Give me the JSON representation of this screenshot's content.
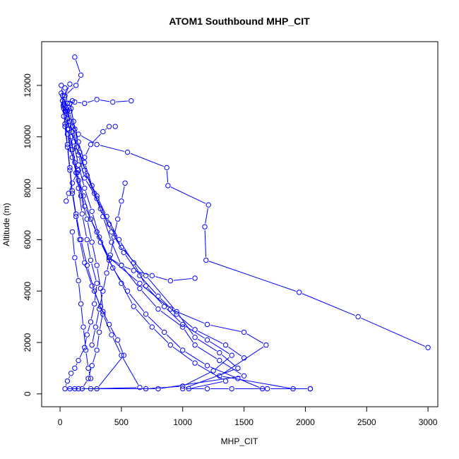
{
  "chart_data": {
    "type": "line",
    "title": "ATOM1 Southbound MHP_CIT",
    "xlabel": "MHP_CIT",
    "ylabel": "Altitude (m)",
    "xlim": [
      -150,
      3080
    ],
    "ylim": [
      -500,
      13700
    ],
    "x_ticks": [
      0,
      500,
      1000,
      1500,
      2000,
      2500,
      3000
    ],
    "x_tick_labels": [
      "0",
      "500",
      "1000",
      "1500",
      "2000",
      "2500",
      "3000"
    ],
    "y_ticks": [
      0,
      2000,
      4000,
      6000,
      8000,
      10000,
      12000
    ],
    "y_tick_labels": [
      "0",
      "2000",
      "4000",
      "6000",
      "8000",
      "10000",
      "12000"
    ],
    "grid": false,
    "legend": "none",
    "color": "#0000ff",
    "marker": "open-circle",
    "series": [
      {
        "values": [
          [
            2040,
            200
          ],
          [
            1690,
            200
          ],
          [
            1400,
            200
          ],
          [
            1200,
            200
          ],
          [
            1000,
            200
          ],
          [
            1450,
            1000
          ],
          [
            1300,
            1600
          ],
          [
            1100,
            2200
          ],
          [
            950,
            3200
          ],
          [
            700,
            4600
          ],
          [
            500,
            5700
          ],
          [
            400,
            6600
          ],
          [
            300,
            7600
          ],
          [
            200,
            8400
          ],
          [
            150,
            9300
          ],
          [
            100,
            10200
          ],
          [
            60,
            11000
          ],
          [
            40,
            11600
          ],
          [
            130,
            12000
          ],
          [
            170,
            12400
          ],
          [
            120,
            13100
          ]
        ]
      },
      {
        "values": [
          [
            2040,
            200
          ],
          [
            1900,
            200
          ],
          [
            1300,
            700
          ],
          [
            1680,
            1900
          ],
          [
            1500,
            2400
          ],
          [
            1200,
            2700
          ],
          [
            900,
            3300
          ],
          [
            650,
            4300
          ],
          [
            400,
            5300
          ],
          [
            300,
            6300
          ],
          [
            200,
            7300
          ],
          [
            150,
            8300
          ],
          [
            100,
            9200
          ],
          [
            60,
            10100
          ],
          [
            30,
            10800
          ],
          [
            20,
            11400
          ],
          [
            80,
            12050
          ]
        ]
      },
      {
        "values": [
          [
            120,
            200
          ],
          [
            40,
            200
          ],
          [
            60,
            500
          ],
          [
            90,
            800
          ],
          [
            120,
            1000
          ],
          [
            150,
            1300
          ],
          [
            200,
            1800
          ],
          [
            220,
            2300
          ],
          [
            250,
            2800
          ],
          [
            280,
            3500
          ],
          [
            300,
            4300
          ],
          [
            250,
            5200
          ],
          [
            220,
            6000
          ],
          [
            180,
            7000
          ],
          [
            150,
            8000
          ],
          [
            120,
            9000
          ],
          [
            90,
            10000
          ],
          [
            60,
            10700
          ],
          [
            30,
            11300
          ],
          [
            10,
            12000
          ]
        ]
      },
      {
        "values": [
          [
            3000,
            1800
          ],
          [
            2430,
            3000
          ],
          [
            1950,
            3950
          ],
          [
            1190,
            5200
          ],
          [
            1180,
            6500
          ],
          [
            1210,
            7350
          ],
          [
            880,
            8100
          ],
          [
            870,
            8800
          ],
          [
            550,
            9400
          ],
          [
            300,
            9700
          ],
          [
            150,
            10100
          ],
          [
            80,
            10600
          ],
          [
            40,
            11200
          ],
          [
            20,
            11600
          ]
        ]
      },
      {
        "values": [
          [
            150,
            200
          ],
          [
            800,
            200
          ],
          [
            1500,
            700
          ],
          [
            1300,
            1300
          ],
          [
            1100,
            1900
          ],
          [
            1000,
            2600
          ],
          [
            800,
            3300
          ],
          [
            650,
            4100
          ],
          [
            500,
            5000
          ],
          [
            420,
            5900
          ],
          [
            350,
            6900
          ],
          [
            280,
            7800
          ],
          [
            200,
            8700
          ],
          [
            140,
            9600
          ],
          [
            100,
            10400
          ],
          [
            80,
            11000
          ],
          [
            100,
            11400
          ]
        ]
      },
      {
        "values": [
          [
            700,
            200
          ],
          [
            1000,
            300
          ],
          [
            1250,
            900
          ],
          [
            1400,
            1500
          ],
          [
            1200,
            2100
          ],
          [
            1000,
            2700
          ],
          [
            850,
            3400
          ],
          [
            700,
            4200
          ],
          [
            600,
            5100
          ],
          [
            480,
            6000
          ],
          [
            380,
            6900
          ],
          [
            300,
            7700
          ],
          [
            220,
            8500
          ],
          [
            160,
            9400
          ],
          [
            120,
            10300
          ],
          [
            90,
            11100
          ]
        ]
      },
      {
        "values": [
          [
            1050,
            200
          ],
          [
            1350,
            500
          ],
          [
            1100,
            1200
          ],
          [
            900,
            1900
          ],
          [
            750,
            2600
          ],
          [
            600,
            3400
          ],
          [
            500,
            4300
          ],
          [
            400,
            5200
          ],
          [
            320,
            6100
          ],
          [
            260,
            7100
          ],
          [
            200,
            8000
          ],
          [
            150,
            8900
          ],
          [
            110,
            9800
          ],
          [
            80,
            10600
          ],
          [
            60,
            11300
          ],
          [
            40,
            11900
          ]
        ]
      },
      {
        "values": [
          [
            250,
            200
          ],
          [
            650,
            250
          ],
          [
            500,
            1500
          ],
          [
            420,
            2300
          ],
          [
            350,
            3100
          ],
          [
            280,
            4000
          ],
          [
            220,
            5000
          ],
          [
            170,
            6000
          ],
          [
            130,
            7000
          ],
          [
            100,
            7900
          ],
          [
            80,
            8800
          ],
          [
            60,
            9700
          ],
          [
            40,
            10500
          ],
          [
            25,
            11200
          ],
          [
            10,
            11700
          ]
        ]
      },
      {
        "values": [
          [
            1650,
            200
          ],
          [
            1450,
            600
          ],
          [
            1200,
            1100
          ],
          [
            1000,
            1700
          ],
          [
            850,
            2400
          ],
          [
            700,
            3100
          ],
          [
            550,
            4000
          ],
          [
            430,
            4900
          ],
          [
            330,
            5900
          ],
          [
            250,
            6800
          ],
          [
            190,
            7700
          ],
          [
            140,
            8600
          ],
          [
            100,
            9500
          ],
          [
            70,
            10300
          ],
          [
            50,
            11000
          ]
        ]
      },
      {
        "values": [
          [
            80,
            200
          ],
          [
            180,
            200
          ],
          [
            230,
            600
          ],
          [
            260,
            1100
          ],
          [
            300,
            1700
          ],
          [
            320,
            2400
          ],
          [
            350,
            3200
          ],
          [
            330,
            4100
          ],
          [
            300,
            5000
          ],
          [
            260,
            5900
          ],
          [
            220,
            6800
          ],
          [
            170,
            7700
          ],
          [
            130,
            8600
          ],
          [
            90,
            9500
          ],
          [
            60,
            10300
          ],
          [
            40,
            11000
          ]
        ]
      },
      {
        "values": [
          [
            1500,
            1400
          ],
          [
            1350,
            1900
          ],
          [
            1100,
            2500
          ],
          [
            950,
            3100
          ],
          [
            800,
            3800
          ],
          [
            650,
            4600
          ],
          [
            520,
            5500
          ],
          [
            420,
            6300
          ],
          [
            330,
            7200
          ],
          [
            260,
            8100
          ],
          [
            200,
            9000
          ],
          [
            150,
            9800
          ],
          [
            110,
            10600
          ],
          [
            80,
            11300
          ]
        ]
      },
      {
        "values": [
          [
            300,
            200
          ],
          [
            520,
            1500
          ],
          [
            470,
            2100
          ],
          [
            400,
            2700
          ],
          [
            330,
            3400
          ],
          [
            260,
            4200
          ],
          [
            200,
            5100
          ],
          [
            160,
            6000
          ],
          [
            130,
            6900
          ],
          [
            100,
            7800
          ],
          [
            80,
            8700
          ],
          [
            60,
            9600
          ],
          [
            40,
            10400
          ],
          [
            30,
            11100
          ]
        ]
      },
      {
        "values": [
          [
            580,
            11400
          ],
          [
            430,
            11350
          ],
          [
            300,
            11450
          ],
          [
            200,
            11300
          ],
          [
            120,
            11350
          ],
          [
            60,
            11300
          ],
          [
            30,
            11250
          ]
        ]
      },
      {
        "values": [
          [
            100,
            6300
          ],
          [
            120,
            5300
          ],
          [
            150,
            4400
          ],
          [
            170,
            3500
          ],
          [
            190,
            2600
          ],
          [
            210,
            1700
          ],
          [
            230,
            1000
          ],
          [
            250,
            600
          ]
        ]
      },
      {
        "values": [
          [
            1100,
            4500
          ],
          [
            900,
            4400
          ],
          [
            750,
            4600
          ],
          [
            600,
            4800
          ],
          [
            500,
            5000
          ],
          [
            400,
            5300
          ]
        ]
      },
      {
        "values": [
          [
            450,
            10400
          ],
          [
            400,
            10400
          ],
          [
            350,
            10200
          ],
          [
            250,
            9700
          ],
          [
            200,
            9200
          ],
          [
            150,
            8700
          ],
          [
            100,
            8200
          ],
          [
            70,
            7800
          ],
          [
            50,
            7500
          ]
        ]
      },
      {
        "values": [
          [
            530,
            8200
          ],
          [
            500,
            7500
          ],
          [
            470,
            6800
          ],
          [
            440,
            6100
          ],
          [
            410,
            5400
          ],
          [
            380,
            4700
          ],
          [
            350,
            4000
          ],
          [
            320,
            3300
          ],
          [
            290,
            2600
          ],
          [
            260,
            1900
          ]
        ]
      }
    ]
  }
}
